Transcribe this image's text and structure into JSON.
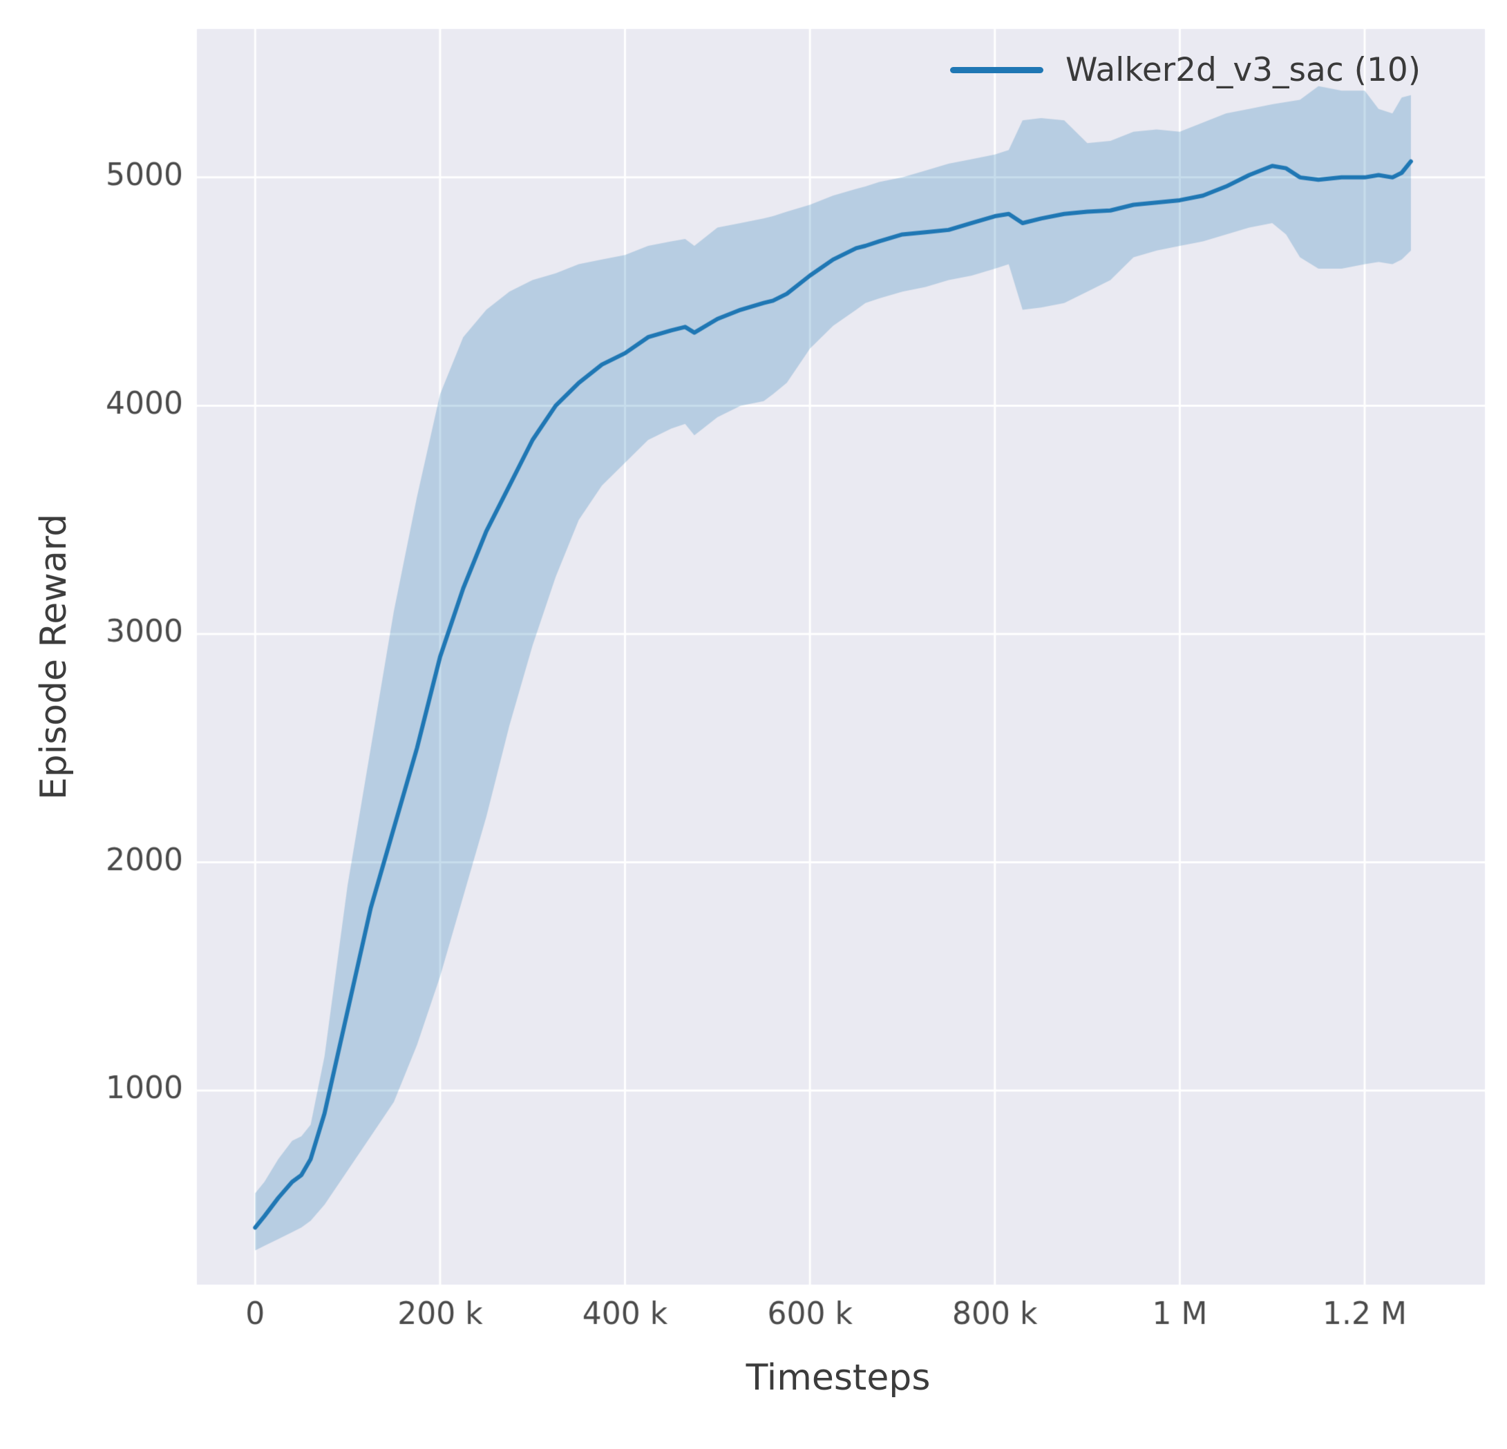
{
  "chart_data": {
    "type": "line",
    "title": "",
    "xlabel": "Timesteps",
    "ylabel": "Episode Reward",
    "legend_position": "upper right",
    "grid": true,
    "style": "seaborn-darkgrid",
    "colors": {
      "line": "#1f77b4",
      "band": "rgba(31,119,180,0.25)",
      "plot_background": "#eaeaf2",
      "grid": "#ffffff",
      "tick_text": "#4a4a4a"
    },
    "xlim": [
      -63000,
      1330000
    ],
    "ylim": [
      150,
      5650
    ],
    "xtick_values": [
      0,
      200000,
      400000,
      600000,
      800000,
      1000000,
      1200000
    ],
    "xtick_labels": [
      "0",
      "200 k",
      "400 k",
      "600 k",
      "800 k",
      "1 M",
      "1.2 M"
    ],
    "ytick_values": [
      1000,
      2000,
      3000,
      4000,
      5000
    ],
    "ytick_labels": [
      "1000",
      "2000",
      "3000",
      "4000",
      "5000"
    ],
    "series": [
      {
        "name": "Walker2d_v3_sac (10)",
        "x": [
          0,
          10000,
          25000,
          40000,
          50000,
          60000,
          75000,
          100000,
          125000,
          150000,
          175000,
          200000,
          225000,
          250000,
          275000,
          300000,
          325000,
          350000,
          375000,
          400000,
          425000,
          450000,
          465000,
          475000,
          500000,
          525000,
          550000,
          560000,
          575000,
          600000,
          625000,
          650000,
          660000,
          675000,
          700000,
          725000,
          750000,
          775000,
          800000,
          815000,
          830000,
          850000,
          875000,
          900000,
          925000,
          950000,
          975000,
          1000000,
          1025000,
          1050000,
          1075000,
          1100000,
          1115000,
          1130000,
          1150000,
          1175000,
          1200000,
          1215000,
          1230000,
          1240000,
          1250000
        ],
        "mean": [
          400,
          450,
          530,
          600,
          630,
          700,
          900,
          1350,
          1800,
          2150,
          2500,
          2900,
          3200,
          3450,
          3650,
          3850,
          4000,
          4100,
          4180,
          4230,
          4300,
          4330,
          4345,
          4320,
          4380,
          4420,
          4450,
          4460,
          4490,
          4570,
          4640,
          4690,
          4700,
          4720,
          4750,
          4760,
          4770,
          4800,
          4830,
          4840,
          4800,
          4820,
          4840,
          4850,
          4855,
          4880,
          4890,
          4900,
          4920,
          4960,
          5010,
          5050,
          5040,
          5000,
          4990,
          5000,
          5000,
          5010,
          5000,
          5020,
          5070
        ],
        "lower": [
          300,
          320,
          350,
          380,
          400,
          430,
          500,
          650,
          800,
          950,
          1200,
          1500,
          1850,
          2200,
          2600,
          2950,
          3250,
          3500,
          3650,
          3750,
          3850,
          3900,
          3920,
          3870,
          3950,
          4000,
          4020,
          4050,
          4100,
          4250,
          4350,
          4420,
          4450,
          4470,
          4500,
          4520,
          4550,
          4570,
          4600,
          4620,
          4420,
          4430,
          4450,
          4500,
          4550,
          4650,
          4680,
          4700,
          4720,
          4750,
          4780,
          4800,
          4750,
          4650,
          4600,
          4600,
          4620,
          4630,
          4620,
          4640,
          4680
        ],
        "upper": [
          550,
          600,
          700,
          780,
          800,
          850,
          1150,
          1900,
          2500,
          3100,
          3600,
          4050,
          4300,
          4420,
          4500,
          4550,
          4580,
          4620,
          4640,
          4660,
          4700,
          4720,
          4730,
          4700,
          4780,
          4800,
          4820,
          4830,
          4850,
          4880,
          4920,
          4950,
          4960,
          4980,
          5000,
          5030,
          5060,
          5080,
          5100,
          5120,
          5250,
          5260,
          5250,
          5150,
          5160,
          5200,
          5210,
          5200,
          5240,
          5280,
          5300,
          5320,
          5330,
          5340,
          5400,
          5380,
          5380,
          5300,
          5280,
          5350,
          5360
        ]
      }
    ]
  }
}
